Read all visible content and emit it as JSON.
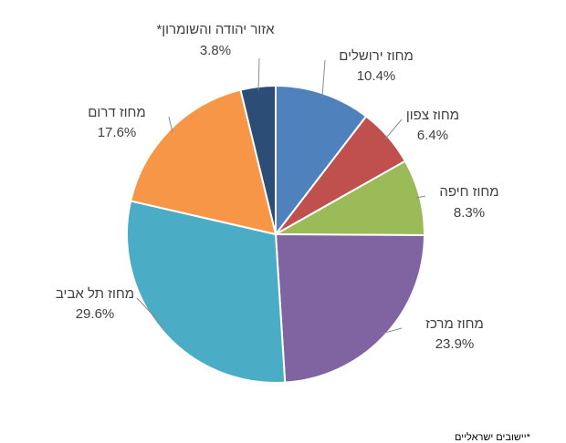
{
  "chart_data": {
    "type": "pie",
    "title": "",
    "start_angle_deg": 0,
    "direction": "clockwise",
    "slices": [
      {
        "label": "מחוז ירושלים",
        "value": 10.4,
        "value_text": "10.4%",
        "color": "#4f81bd"
      },
      {
        "label": "מחוז צפון",
        "value": 6.4,
        "value_text": "6.4%",
        "color": "#c0504d"
      },
      {
        "label": "מחוז חיפה",
        "value": 8.3,
        "value_text": "8.3%",
        "color": "#9bbb59"
      },
      {
        "label": "מחוז מרכז",
        "value": 23.9,
        "value_text": "23.9%",
        "color": "#8064a2"
      },
      {
        "label": "מחוז תל אביב",
        "value": 29.6,
        "value_text": "29.6%",
        "color": "#4bacc6"
      },
      {
        "label": "מחוז דרום",
        "value": 17.6,
        "value_text": "17.6%",
        "color": "#f79646"
      },
      {
        "label": "אזור יהודה והשומרון*",
        "value": 3.8,
        "value_text": "3.8%",
        "color": "#2c4d75"
      }
    ],
    "legend": "none"
  },
  "footnote": "*יישובים ישראליים"
}
